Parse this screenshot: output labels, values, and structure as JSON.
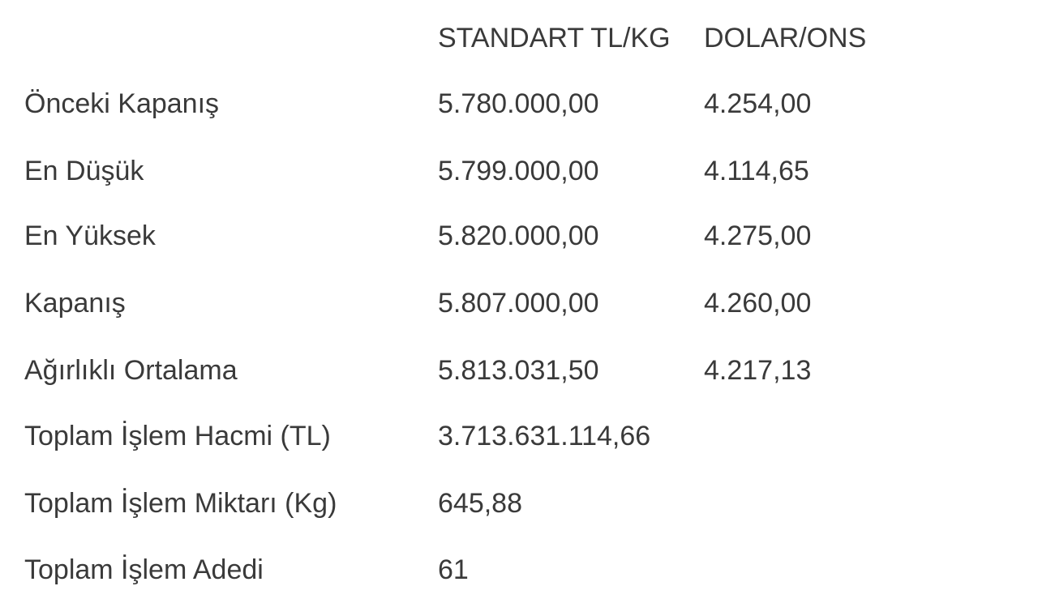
{
  "table": {
    "headers": [
      "",
      "STANDART TL/KG",
      "DOLAR/ONS"
    ],
    "rows": [
      {
        "label": "Önceki Kapanış",
        "tl_kg": "5.780.000,00",
        "usd_ons": "4.254,00"
      },
      {
        "label": "En Düşük",
        "tl_kg": "5.799.000,00",
        "usd_ons": "4.114,65"
      },
      {
        "label": "En Yüksek",
        "tl_kg": "5.820.000,00",
        "usd_ons": "4.275,00"
      },
      {
        "label": "Kapanış",
        "tl_kg": "5.807.000,00",
        "usd_ons": "4.260,00"
      },
      {
        "label": "Ağırlıklı Ortalama",
        "tl_kg": "5.813.031,50",
        "usd_ons": "4.217,13"
      },
      {
        "label": "Toplam İşlem Hacmi (TL)",
        "tl_kg": "3.713.631.114,66",
        "usd_ons": ""
      },
      {
        "label": "Toplam İşlem Miktarı (Kg)",
        "tl_kg": "645,88",
        "usd_ons": ""
      },
      {
        "label": "Toplam İşlem Adedi",
        "tl_kg": "61",
        "usd_ons": ""
      }
    ]
  }
}
